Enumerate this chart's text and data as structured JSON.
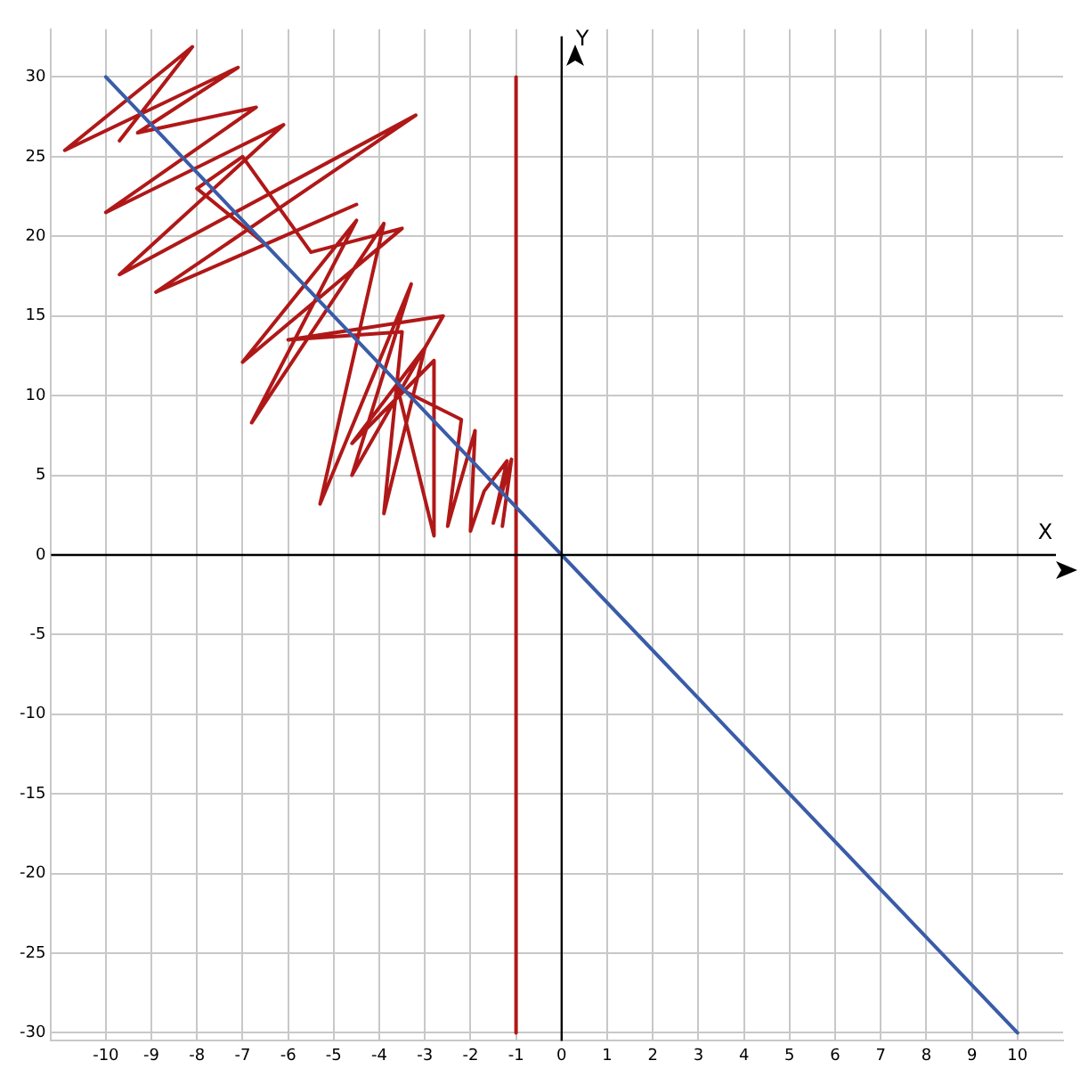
{
  "chart_data": {
    "type": "line",
    "xlabel": "X",
    "ylabel": "Y",
    "xlim": [
      -11.2,
      11
    ],
    "ylim": [
      -30.5,
      33
    ],
    "xticks": [
      -10,
      -9,
      -8,
      -7,
      -6,
      -5,
      -4,
      -3,
      -2,
      -1,
      0,
      1,
      2,
      3,
      4,
      5,
      6,
      7,
      8,
      9,
      10
    ],
    "yticks": [
      -30,
      -25,
      -20,
      -15,
      -10,
      -5,
      0,
      5,
      10,
      15,
      20,
      25,
      30
    ],
    "grid": true,
    "legend": false,
    "marker": "none",
    "line_style": "solid",
    "series": [
      {
        "color": "#3a5ca8",
        "x": [
          -10,
          10
        ],
        "values": [
          30,
          -30
        ]
      },
      {
        "color": "#b01818",
        "x": [
          -1,
          -1
        ],
        "values": [
          -30,
          30
        ]
      },
      {
        "color": "#b01818",
        "x": [
          -9.7,
          -8.1,
          -10.9,
          -7.1,
          -9.3,
          -6.7,
          -10.0,
          -6.1,
          -9.7,
          -3.2,
          -8.9,
          -4.5,
          -6.5,
          -8.0,
          -7.0,
          -5.5,
          -3.5,
          -7.0,
          -4.5,
          -6.8,
          -3.9,
          -5.3,
          -3.3,
          -4.6,
          -2.6,
          -6.0,
          -3.5,
          -3.9,
          -3.0,
          -4.6,
          -2.8,
          -2.8,
          -3.6,
          -2.2,
          -2.5,
          -1.9,
          -2.0,
          -1.7,
          -1.2,
          -1.5,
          -1.1,
          -1.3
        ],
        "values": [
          26,
          31.9,
          25.4,
          30.6,
          26.5,
          28.1,
          21.5,
          27.0,
          17.6,
          27.6,
          16.5,
          22.0,
          19.5,
          23.0,
          25.0,
          19.0,
          20.5,
          12.1,
          21.0,
          8.3,
          20.8,
          3.2,
          17.0,
          5.0,
          15.0,
          13.5,
          14.0,
          2.6,
          13.0,
          7.0,
          12.2,
          1.2,
          10.5,
          8.5,
          1.8,
          7.8,
          1.5,
          4.0,
          5.9,
          2.0,
          6.0,
          1.8
        ]
      }
    ]
  }
}
